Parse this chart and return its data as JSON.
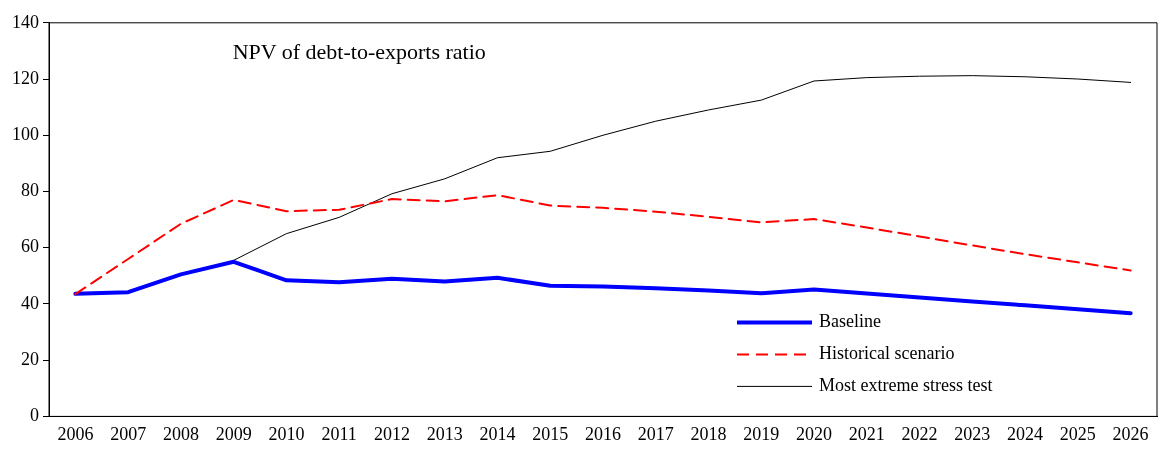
{
  "chart_data": {
    "type": "line",
    "title": "NPV of debt-to-exports ratio",
    "categories": [
      "2006",
      "2007",
      "2008",
      "2009",
      "2010",
      "2011",
      "2012",
      "2013",
      "2014",
      "2015",
      "2016",
      "2017",
      "2018",
      "2019",
      "2020",
      "2021",
      "2022",
      "2023",
      "2024",
      "2025",
      "2026"
    ],
    "series": [
      {
        "name": "Baseline",
        "color": "#0000ff",
        "line_style": "solid",
        "values": [
          43.6,
          44.2,
          50.5,
          55,
          48.4,
          47.7,
          49,
          48,
          49.3,
          46.5,
          46.2,
          45.6,
          44.8,
          43.8,
          45.1,
          43.7,
          42.3,
          40.9,
          39.5,
          38.1,
          36.7
        ]
      },
      {
        "name": "Historical scenario",
        "color": "#ff0000",
        "line_style": "dashed",
        "values": [
          43.5,
          56,
          68.5,
          77,
          73,
          73.5,
          77.3,
          76.5,
          78.7,
          75,
          74.2,
          72.8,
          71,
          69,
          70.2,
          67.2,
          64,
          60.8,
          57.7,
          54.8,
          51.9
        ]
      },
      {
        "name": "Most extreme stress test",
        "color": "#000000",
        "line_style": "solid",
        "values": [
          null,
          null,
          null,
          55.5,
          65,
          70.8,
          79.2,
          84.5,
          92,
          94.3,
          100,
          105,
          109,
          112.5,
          119.3,
          120.5,
          121,
          121.2,
          120.8,
          120,
          118.8
        ]
      }
    ],
    "ylim": [
      0,
      140
    ],
    "yticks": [
      0,
      20,
      40,
      60,
      80,
      100,
      120,
      140
    ],
    "grid": false,
    "legend": "bottom right",
    "marker": "none"
  }
}
